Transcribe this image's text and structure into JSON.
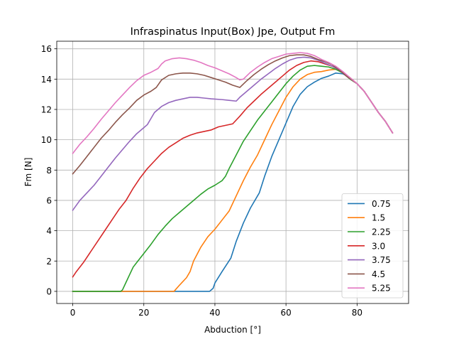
{
  "chart_data": {
    "type": "line",
    "title": "Infraspinatus Input(Box) Jpe, Output Fm",
    "xlabel": "Abduction [°]",
    "ylabel": "Fm [N]",
    "xlim": [
      -4.5,
      94.5
    ],
    "ylim": [
      -0.8,
      16.5
    ],
    "xticks": [
      0,
      20,
      40,
      60,
      80
    ],
    "yticks": [
      0,
      2,
      4,
      6,
      8,
      10,
      12,
      14,
      16
    ],
    "grid": true,
    "legend_position": "lower right",
    "series": [
      {
        "name": "0.75",
        "color": "#1f77b4",
        "points": [
          [
            0,
            0
          ],
          [
            10,
            0
          ],
          [
            20,
            0
          ],
          [
            30,
            0
          ],
          [
            38.5,
            0
          ],
          [
            39.5,
            0.2
          ],
          [
            40,
            0.55
          ],
          [
            42,
            1.3
          ],
          [
            44.5,
            2.2
          ],
          [
            46,
            3.3
          ],
          [
            48,
            4.5
          ],
          [
            50,
            5.5
          ],
          [
            52.5,
            6.5
          ],
          [
            54,
            7.6
          ],
          [
            56,
            8.9
          ],
          [
            58,
            10.0
          ],
          [
            60,
            11.1
          ],
          [
            62,
            12.2
          ],
          [
            64,
            13.0
          ],
          [
            66,
            13.5
          ],
          [
            68,
            13.8
          ],
          [
            70,
            14.05
          ],
          [
            72,
            14.2
          ],
          [
            74,
            14.4
          ],
          [
            76,
            14.35
          ],
          [
            78,
            14.1
          ],
          [
            80,
            13.7
          ],
          [
            82,
            13.2
          ],
          [
            84,
            12.5
          ],
          [
            86,
            11.8
          ],
          [
            88,
            11.2
          ],
          [
            90,
            10.45
          ]
        ]
      },
      {
        "name": "1.5",
        "color": "#ff7f0e",
        "points": [
          [
            0,
            0
          ],
          [
            10,
            0
          ],
          [
            20,
            0
          ],
          [
            28.5,
            0
          ],
          [
            30,
            0.4
          ],
          [
            32,
            0.9
          ],
          [
            33,
            1.3
          ],
          [
            34,
            2.0
          ],
          [
            36,
            2.9
          ],
          [
            38,
            3.6
          ],
          [
            40,
            4.1
          ],
          [
            42,
            4.7
          ],
          [
            44,
            5.3
          ],
          [
            46,
            6.3
          ],
          [
            48,
            7.3
          ],
          [
            50,
            8.2
          ],
          [
            52,
            9.0
          ],
          [
            54,
            10.0
          ],
          [
            56,
            11.0
          ],
          [
            58,
            11.9
          ],
          [
            60,
            12.8
          ],
          [
            62,
            13.5
          ],
          [
            64,
            14.0
          ],
          [
            66,
            14.3
          ],
          [
            68,
            14.45
          ],
          [
            70,
            14.5
          ],
          [
            72,
            14.6
          ],
          [
            74,
            14.65
          ],
          [
            76,
            14.45
          ],
          [
            78,
            14.1
          ],
          [
            80,
            13.7
          ],
          [
            82,
            13.2
          ],
          [
            84,
            12.5
          ],
          [
            86,
            11.8
          ],
          [
            88,
            11.2
          ],
          [
            90,
            10.45
          ]
        ]
      },
      {
        "name": "2.25",
        "color": "#2ca02c",
        "points": [
          [
            0,
            0
          ],
          [
            10,
            0
          ],
          [
            13.5,
            0
          ],
          [
            14,
            0.1
          ],
          [
            15,
            0.6
          ],
          [
            16,
            1.1
          ],
          [
            17,
            1.6
          ],
          [
            18,
            1.9
          ],
          [
            20,
            2.5
          ],
          [
            22,
            3.1
          ],
          [
            24,
            3.75
          ],
          [
            26,
            4.3
          ],
          [
            28,
            4.8
          ],
          [
            30,
            5.2
          ],
          [
            32,
            5.6
          ],
          [
            34,
            6.0
          ],
          [
            36,
            6.4
          ],
          [
            38,
            6.75
          ],
          [
            40,
            7.0
          ],
          [
            42,
            7.3
          ],
          [
            43,
            7.6
          ],
          [
            44,
            8.1
          ],
          [
            46,
            9.0
          ],
          [
            48,
            9.9
          ],
          [
            50,
            10.6
          ],
          [
            52,
            11.3
          ],
          [
            54,
            11.9
          ],
          [
            56,
            12.5
          ],
          [
            58,
            13.1
          ],
          [
            60,
            13.7
          ],
          [
            62,
            14.2
          ],
          [
            64,
            14.6
          ],
          [
            66,
            14.85
          ],
          [
            68,
            14.9
          ],
          [
            70,
            14.85
          ],
          [
            72,
            14.8
          ],
          [
            74,
            14.65
          ],
          [
            76,
            14.4
          ],
          [
            78,
            14.0
          ],
          [
            80,
            13.7
          ],
          [
            82,
            13.2
          ],
          [
            84,
            12.5
          ],
          [
            86,
            11.8
          ],
          [
            88,
            11.2
          ],
          [
            90,
            10.45
          ]
        ]
      },
      {
        "name": "3.0",
        "color": "#d62728",
        "points": [
          [
            0,
            0.95
          ],
          [
            1,
            1.3
          ],
          [
            3,
            1.9
          ],
          [
            5,
            2.6
          ],
          [
            7,
            3.3
          ],
          [
            9,
            4.0
          ],
          [
            11,
            4.7
          ],
          [
            13,
            5.4
          ],
          [
            15,
            6.0
          ],
          [
            17,
            6.8
          ],
          [
            19,
            7.5
          ],
          [
            21,
            8.1
          ],
          [
            23,
            8.6
          ],
          [
            25,
            9.1
          ],
          [
            27,
            9.5
          ],
          [
            29,
            9.8
          ],
          [
            31,
            10.1
          ],
          [
            33,
            10.3
          ],
          [
            35,
            10.45
          ],
          [
            37,
            10.55
          ],
          [
            39,
            10.65
          ],
          [
            41,
            10.85
          ],
          [
            43,
            10.95
          ],
          [
            45,
            11.05
          ],
          [
            47,
            11.55
          ],
          [
            49,
            12.1
          ],
          [
            51,
            12.55
          ],
          [
            53,
            13.0
          ],
          [
            55,
            13.4
          ],
          [
            57,
            13.8
          ],
          [
            59,
            14.2
          ],
          [
            61,
            14.6
          ],
          [
            63,
            14.9
          ],
          [
            65,
            15.1
          ],
          [
            67,
            15.2
          ],
          [
            69,
            15.15
          ],
          [
            71,
            15.0
          ],
          [
            73,
            14.85
          ],
          [
            75,
            14.6
          ],
          [
            77,
            14.2
          ],
          [
            80,
            13.7
          ],
          [
            82,
            13.2
          ],
          [
            84,
            12.5
          ],
          [
            86,
            11.8
          ],
          [
            88,
            11.2
          ],
          [
            90,
            10.45
          ]
        ]
      },
      {
        "name": "3.75",
        "color": "#9467bd",
        "points": [
          [
            0,
            5.35
          ],
          [
            2,
            6.0
          ],
          [
            4,
            6.5
          ],
          [
            6,
            7.0
          ],
          [
            8,
            7.6
          ],
          [
            10,
            8.2
          ],
          [
            12,
            8.8
          ],
          [
            14,
            9.35
          ],
          [
            16,
            9.9
          ],
          [
            18,
            10.4
          ],
          [
            20,
            10.8
          ],
          [
            21,
            11.0
          ],
          [
            22,
            11.4
          ],
          [
            23,
            11.8
          ],
          [
            25,
            12.2
          ],
          [
            27,
            12.45
          ],
          [
            29,
            12.6
          ],
          [
            31,
            12.7
          ],
          [
            33,
            12.8
          ],
          [
            35,
            12.8
          ],
          [
            37,
            12.75
          ],
          [
            39,
            12.7
          ],
          [
            42,
            12.65
          ],
          [
            44,
            12.6
          ],
          [
            46,
            12.55
          ],
          [
            47,
            12.8
          ],
          [
            49,
            13.2
          ],
          [
            51,
            13.6
          ],
          [
            53,
            14.0
          ],
          [
            55,
            14.35
          ],
          [
            57,
            14.7
          ],
          [
            59,
            15.0
          ],
          [
            61,
            15.25
          ],
          [
            63,
            15.4
          ],
          [
            65,
            15.45
          ],
          [
            67,
            15.4
          ],
          [
            69,
            15.25
          ],
          [
            71,
            15.05
          ],
          [
            73,
            14.85
          ],
          [
            75,
            14.6
          ],
          [
            77,
            14.2
          ],
          [
            80,
            13.7
          ],
          [
            82,
            13.2
          ],
          [
            84,
            12.5
          ],
          [
            86,
            11.8
          ],
          [
            88,
            11.2
          ],
          [
            90,
            10.45
          ]
        ]
      },
      {
        "name": "4.5",
        "color": "#8c564b",
        "points": [
          [
            0,
            7.75
          ],
          [
            2,
            8.3
          ],
          [
            4,
            8.9
          ],
          [
            6,
            9.5
          ],
          [
            8,
            10.1
          ],
          [
            10,
            10.6
          ],
          [
            12,
            11.15
          ],
          [
            14,
            11.65
          ],
          [
            16,
            12.1
          ],
          [
            18,
            12.6
          ],
          [
            20,
            12.95
          ],
          [
            22,
            13.2
          ],
          [
            23.5,
            13.45
          ],
          [
            25,
            13.95
          ],
          [
            27,
            14.25
          ],
          [
            29,
            14.35
          ],
          [
            31,
            14.4
          ],
          [
            33,
            14.4
          ],
          [
            35,
            14.35
          ],
          [
            37,
            14.25
          ],
          [
            39,
            14.1
          ],
          [
            41,
            13.95
          ],
          [
            43,
            13.8
          ],
          [
            45,
            13.6
          ],
          [
            47,
            13.45
          ],
          [
            49,
            13.9
          ],
          [
            51,
            14.3
          ],
          [
            53,
            14.65
          ],
          [
            55,
            14.95
          ],
          [
            57,
            15.2
          ],
          [
            59,
            15.4
          ],
          [
            61,
            15.55
          ],
          [
            63,
            15.6
          ],
          [
            65,
            15.6
          ],
          [
            67,
            15.5
          ],
          [
            69,
            15.3
          ],
          [
            71,
            15.15
          ],
          [
            73,
            14.95
          ],
          [
            75,
            14.6
          ],
          [
            77,
            14.2
          ],
          [
            80,
            13.7
          ],
          [
            82,
            13.2
          ],
          [
            84,
            12.5
          ],
          [
            86,
            11.8
          ],
          [
            88,
            11.2
          ],
          [
            90,
            10.45
          ]
        ]
      },
      {
        "name": "5.25",
        "color": "#e377c2",
        "points": [
          [
            0,
            9.1
          ],
          [
            2,
            9.7
          ],
          [
            4,
            10.2
          ],
          [
            6,
            10.75
          ],
          [
            8,
            11.35
          ],
          [
            10,
            11.9
          ],
          [
            12,
            12.45
          ],
          [
            14,
            12.95
          ],
          [
            16,
            13.45
          ],
          [
            18,
            13.9
          ],
          [
            20,
            14.25
          ],
          [
            22,
            14.45
          ],
          [
            24,
            14.7
          ],
          [
            25,
            15.0
          ],
          [
            26,
            15.2
          ],
          [
            28,
            15.35
          ],
          [
            30,
            15.4
          ],
          [
            32,
            15.35
          ],
          [
            34,
            15.25
          ],
          [
            36,
            15.1
          ],
          [
            38,
            14.9
          ],
          [
            40,
            14.75
          ],
          [
            42,
            14.55
          ],
          [
            44,
            14.35
          ],
          [
            46,
            14.1
          ],
          [
            47,
            13.95
          ],
          [
            48,
            14.0
          ],
          [
            50,
            14.45
          ],
          [
            52,
            14.8
          ],
          [
            54,
            15.1
          ],
          [
            56,
            15.35
          ],
          [
            58,
            15.5
          ],
          [
            60,
            15.65
          ],
          [
            62,
            15.7
          ],
          [
            64,
            15.75
          ],
          [
            66,
            15.7
          ],
          [
            68,
            15.55
          ],
          [
            70,
            15.3
          ],
          [
            72,
            15.1
          ],
          [
            74,
            14.85
          ],
          [
            76,
            14.5
          ],
          [
            78,
            14.1
          ],
          [
            80,
            13.7
          ],
          [
            82,
            13.2
          ],
          [
            84,
            12.5
          ],
          [
            86,
            11.8
          ],
          [
            88,
            11.2
          ],
          [
            90,
            10.45
          ]
        ]
      }
    ]
  }
}
